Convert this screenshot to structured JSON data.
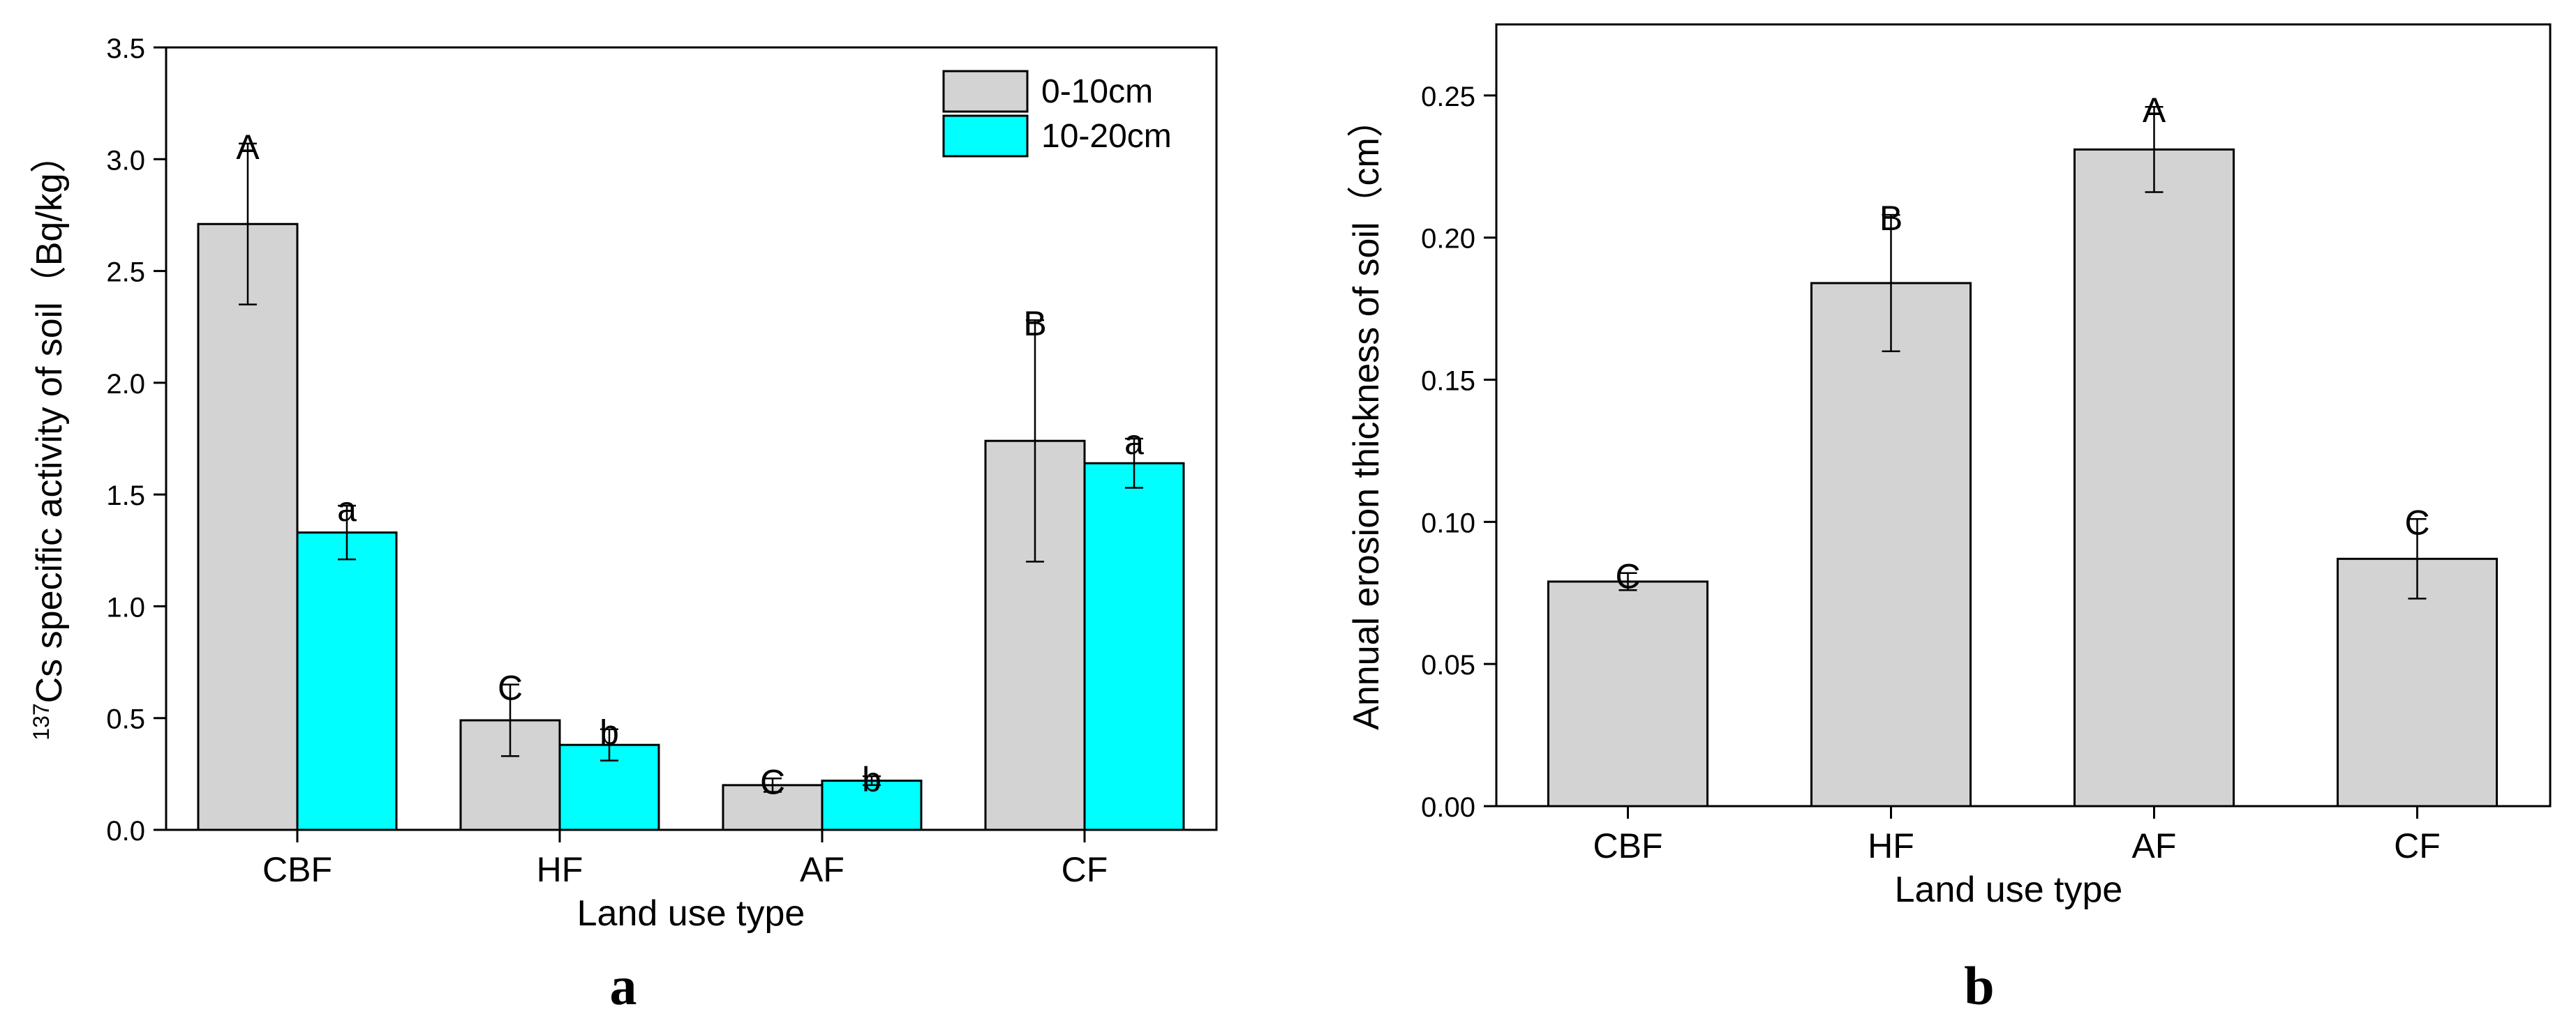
{
  "chart_data": [
    {
      "type": "bar",
      "panel_label": "a",
      "xlabel": "Land use type",
      "ylabel_prefix": "137",
      "ylabel": "Cs specific activity of soil（Bq/kg）",
      "categories": [
        "CBF",
        "HF",
        "AF",
        "CF"
      ],
      "ylim": [
        0,
        3.5
      ],
      "yticks": [
        "0.0",
        "0.5",
        "1.0",
        "1.5",
        "2.0",
        "2.5",
        "3.0",
        "3.5"
      ],
      "legend_position": "top-right",
      "series": [
        {
          "name": "0-10cm",
          "color": "#d3d3d3",
          "values": [
            2.71,
            0.49,
            0.2,
            1.74
          ],
          "error": [
            0.36,
            0.16,
            0.03,
            0.54
          ],
          "letters": [
            "A",
            "C",
            "C",
            "B"
          ]
        },
        {
          "name": "10-20cm",
          "color": "#00ffff",
          "values": [
            1.33,
            0.38,
            0.22,
            1.64
          ],
          "error": [
            0.12,
            0.07,
            0.02,
            0.11
          ],
          "letters": [
            "a",
            "b",
            "b",
            "a"
          ]
        }
      ]
    },
    {
      "type": "bar",
      "panel_label": "b",
      "xlabel": "Land use type",
      "ylabel": "Annual erosion thickness of soil（cm）",
      "categories": [
        "CBF",
        "HF",
        "AF",
        "CF"
      ],
      "ylim": [
        0,
        0.275
      ],
      "yticks": [
        "0.00",
        "0.05",
        "0.10",
        "0.15",
        "0.20",
        "0.25"
      ],
      "series": [
        {
          "color": "#d3d3d3",
          "values": [
            0.079,
            0.184,
            0.231,
            0.087
          ],
          "error": [
            0.003,
            0.024,
            0.015,
            0.014
          ],
          "letters": [
            "C",
            "B",
            "A",
            "C"
          ]
        }
      ]
    }
  ]
}
